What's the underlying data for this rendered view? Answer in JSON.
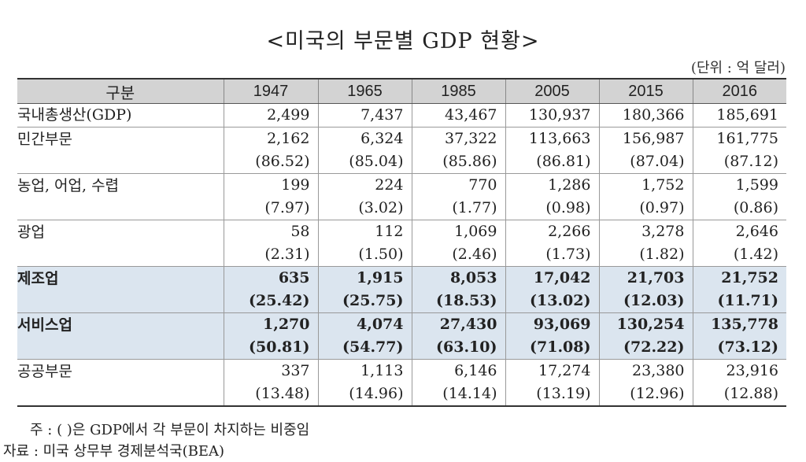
{
  "title": "<미국의 부문별 GDP 현황>",
  "unit": "(단위 : 억 달러)",
  "header": {
    "category": "구분",
    "years": [
      "1947",
      "1965",
      "1985",
      "2005",
      "2015",
      "2016"
    ]
  },
  "rows": [
    {
      "label": "국내총생산(GDP)",
      "values": [
        "2,499",
        "7,437",
        "43,467",
        "130,937",
        "180,366",
        "185,691"
      ],
      "shares": null,
      "highlight": false
    },
    {
      "label": "민간부문",
      "values": [
        "2,162",
        "6,324",
        "37,322",
        "113,663",
        "156,987",
        "161,775"
      ],
      "shares": [
        "(86.52)",
        "(85.04)",
        "(85.86)",
        "(86.81)",
        "(87.04)",
        "(87.12)"
      ],
      "highlight": false
    },
    {
      "label": "농업, 어업, 수렵",
      "values": [
        "199",
        "224",
        "770",
        "1,286",
        "1,752",
        "1,599"
      ],
      "shares": [
        "(7.97)",
        "(3.02)",
        "(1.77)",
        "(0.98)",
        "(0.97)",
        "(0.86)"
      ],
      "highlight": false
    },
    {
      "label": "광업",
      "values": [
        "58",
        "112",
        "1,069",
        "2,266",
        "3,278",
        "2,646"
      ],
      "shares": [
        "(2.31)",
        "(1.50)",
        "(2.46)",
        "(1.73)",
        "(1.82)",
        "(1.42)"
      ],
      "highlight": false
    },
    {
      "label": "제조업",
      "values": [
        "635",
        "1,915",
        "8,053",
        "17,042",
        "21,703",
        "21,752"
      ],
      "shares": [
        "(25.42)",
        "(25.75)",
        "(18.53)",
        "(13.02)",
        "(12.03)",
        "(11.71)"
      ],
      "highlight": true
    },
    {
      "label": "서비스업",
      "values": [
        "1,270",
        "4,074",
        "27,430",
        "93,069",
        "130,254",
        "135,778"
      ],
      "shares": [
        "(50.81)",
        "(54.77)",
        "(63.10)",
        "(71.08)",
        "(72.22)",
        "(73.12)"
      ],
      "highlight": true
    },
    {
      "label": "공공부문",
      "values": [
        "337",
        "1,113",
        "6,146",
        "17,274",
        "23,380",
        "23,916"
      ],
      "shares": [
        "(13.48)",
        "(14.96)",
        "(14.14)",
        "(13.19)",
        "(12.96)",
        "(12.88)"
      ],
      "highlight": false
    }
  ],
  "note": "주 : ( )은 GDP에서 각 부문이 차지하는 비중임",
  "source": "자료 : 미국 상무부 경제분석국(BEA)"
}
